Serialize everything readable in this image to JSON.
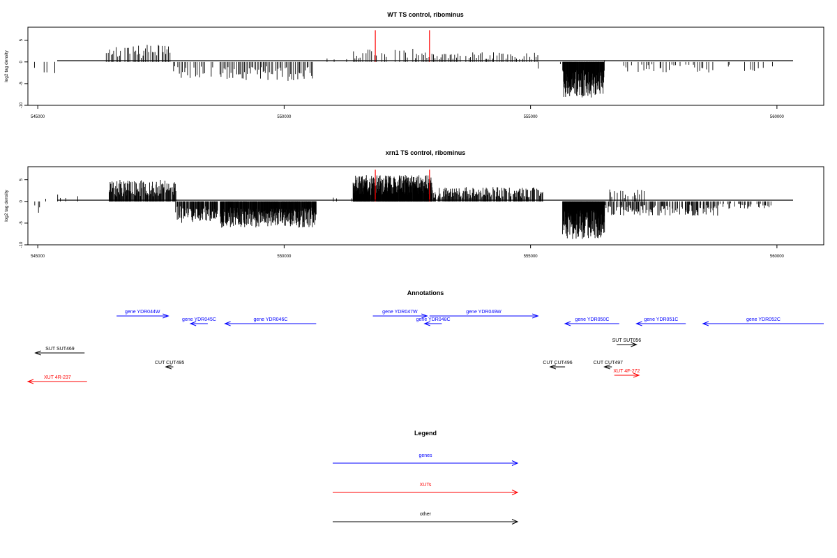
{
  "chart_data": [
    {
      "type": "bar",
      "title": "WT TS control, ribominus",
      "xlabel": "",
      "ylabel": "log2 tag density",
      "xlim": [
        544800,
        560950
      ],
      "ylim": [
        -10,
        8
      ],
      "xticks": [
        545000,
        550000,
        555000,
        560000
      ],
      "yticks": [
        -10,
        -5,
        0,
        5
      ],
      "segments": [
        {
          "x0": 544950,
          "x1": 545700,
          "step": 140,
          "amp": 2.8,
          "density": 0.35,
          "sign": -1,
          "seed": 11
        },
        {
          "x0": 546400,
          "x1": 547700,
          "step": 28,
          "amp": 3.6,
          "density": 0.85,
          "sign": 1,
          "seed": 12
        },
        {
          "x0": 547750,
          "x1": 548550,
          "step": 32,
          "amp": 3.4,
          "density": 0.8,
          "sign": -1,
          "seed": 13
        },
        {
          "x0": 548700,
          "x1": 550600,
          "step": 28,
          "amp": 4.0,
          "density": 0.85,
          "sign": -1,
          "seed": 14
        },
        {
          "x0": 550900,
          "x1": 551300,
          "step": 90,
          "amp": 1.0,
          "density": 0.3,
          "sign": 1,
          "seed": 15
        },
        {
          "x0": 551400,
          "x1": 552950,
          "step": 34,
          "amp": 2.8,
          "density": 0.7,
          "sign": 1,
          "seed": 16
        },
        {
          "x0": 553000,
          "x1": 555200,
          "step": 36,
          "amp": 2.0,
          "density": 0.75,
          "sign": 1,
          "seed": 17
        },
        {
          "x0": 555200,
          "x1": 555650,
          "step": 150,
          "amp": 1.5,
          "density": 0.3,
          "sign": -1,
          "seed": 18
        },
        {
          "x0": 555650,
          "x1": 556500,
          "step": 6,
          "amp": 7.5,
          "density": 1.0,
          "sign": -1,
          "seed": 19
        },
        {
          "x0": 556500,
          "x1": 556900,
          "step": 80,
          "amp": 1.2,
          "density": 0.4,
          "sign": 1,
          "seed": 20
        },
        {
          "x0": 556900,
          "x1": 558700,
          "step": 40,
          "amp": 2.2,
          "density": 0.6,
          "sign": -1,
          "seed": 21
        },
        {
          "x0": 559000,
          "x1": 559900,
          "step": 45,
          "amp": 2.2,
          "density": 0.55,
          "sign": -1,
          "seed": 22
        }
      ],
      "highlights": [
        {
          "x": 551850,
          "y": 7.3,
          "color": "#ff0000"
        },
        {
          "x": 552950,
          "y": 7.3,
          "color": "#ff0000"
        }
      ]
    },
    {
      "type": "bar",
      "title": "xrn1 TS control, ribominus",
      "xlabel": "",
      "ylabel": "log2 tag density",
      "xlim": [
        544800,
        560950
      ],
      "ylim": [
        -10,
        8
      ],
      "xticks": [
        545000,
        550000,
        555000,
        560000
      ],
      "yticks": [
        -10,
        -5,
        0,
        5
      ],
      "segments": [
        {
          "x0": 544950,
          "x1": 545100,
          "step": 30,
          "amp": 2.8,
          "density": 0.8,
          "sign": -1,
          "seed": 31
        },
        {
          "x0": 545150,
          "x1": 545900,
          "step": 60,
          "amp": 1.5,
          "density": 0.5,
          "sign": 1,
          "seed": 32
        },
        {
          "x0": 546450,
          "x1": 547800,
          "step": 10,
          "amp": 4.5,
          "density": 0.9,
          "sign": 1,
          "seed": 33
        },
        {
          "x0": 547800,
          "x1": 548650,
          "step": 10,
          "amp": 4.5,
          "density": 0.9,
          "sign": -1,
          "seed": 34
        },
        {
          "x0": 548700,
          "x1": 550650,
          "step": 6,
          "amp": 5.5,
          "density": 0.95,
          "sign": -1,
          "seed": 35
        },
        {
          "x0": 551000,
          "x1": 551400,
          "step": 60,
          "amp": 1.2,
          "density": 0.4,
          "sign": 1,
          "seed": 36
        },
        {
          "x0": 551400,
          "x1": 553000,
          "step": 5,
          "amp": 5.5,
          "density": 0.95,
          "sign": 1,
          "seed": 37
        },
        {
          "x0": 553000,
          "x1": 555250,
          "step": 12,
          "amp": 3.0,
          "density": 0.85,
          "sign": 1,
          "seed": 38
        },
        {
          "x0": 555650,
          "x1": 556500,
          "step": 5,
          "amp": 8.0,
          "density": 1.0,
          "sign": -1,
          "seed": 39
        },
        {
          "x0": 556500,
          "x1": 558800,
          "step": 14,
          "amp": 3.0,
          "density": 0.8,
          "sign": -1,
          "seed": 40
        },
        {
          "x0": 556600,
          "x1": 557300,
          "step": 25,
          "amp": 2.5,
          "density": 0.6,
          "sign": 1,
          "seed": 41
        },
        {
          "x0": 558800,
          "x1": 559900,
          "step": 20,
          "amp": 1.6,
          "density": 0.6,
          "sign": -1,
          "seed": 42
        }
      ],
      "highlights": [
        {
          "x": 551850,
          "y": 7.3,
          "color": "#ff0000"
        },
        {
          "x": 552950,
          "y": 7.3,
          "color": "#ff0000"
        }
      ]
    }
  ],
  "annotations": {
    "title": "Annotations",
    "items": [
      {
        "label": "gene YDR044W",
        "from": 546600,
        "to": 547650,
        "row": 0,
        "color": "#0000ff"
      },
      {
        "label": "gene YDR045C",
        "from": 548450,
        "to": 548100,
        "row": 1,
        "color": "#0000ff"
      },
      {
        "label": "gene YDR046C",
        "from": 550650,
        "to": 548800,
        "row": 1,
        "color": "#0000ff"
      },
      {
        "label": "gene YDR047W",
        "from": 551800,
        "to": 552900,
        "row": 0,
        "color": "#0000ff"
      },
      {
        "label": "gene YDR048C",
        "from": 553200,
        "to": 552850,
        "row": 1,
        "color": "#0000ff"
      },
      {
        "label": "gene YDR049W",
        "from": 552950,
        "to": 555150,
        "row": 0,
        "color": "#0000ff"
      },
      {
        "label": "gene YDR050C",
        "from": 556800,
        "to": 555700,
        "row": 1,
        "color": "#0000ff"
      },
      {
        "label": "gene YDR051C",
        "from": 558150,
        "to": 557150,
        "row": 1,
        "color": "#0000ff"
      },
      {
        "label": "gene YDR052C",
        "from": 560950,
        "to": 558500,
        "row": 1,
        "color": "#0000ff"
      },
      {
        "label": "SUT SUT469",
        "from": 545950,
        "to": 544950,
        "row": 2,
        "color": "#000000"
      },
      {
        "label": "SUT SUT056",
        "from": 556750,
        "to": 557150,
        "row": 3,
        "color": "#000000"
      },
      {
        "label": "CUT CUT495",
        "from": 547750,
        "to": 547600,
        "row": 4,
        "color": "#000000"
      },
      {
        "label": "CUT CUT496",
        "from": 555700,
        "to": 555400,
        "row": 4,
        "color": "#000000"
      },
      {
        "label": "CUT CUT497",
        "from": 556650,
        "to": 556500,
        "row": 4,
        "color": "#000000"
      },
      {
        "label": "XUT 4F-272",
        "from": 556700,
        "to": 557200,
        "row": 5,
        "color": "#ff0000"
      },
      {
        "label": "XUT 4R-237",
        "from": 546000,
        "to": 544800,
        "row": 6,
        "color": "#ff0000"
      }
    ]
  },
  "legend": {
    "title": "Legend",
    "items": [
      {
        "label": "genes",
        "color": "#0000ff"
      },
      {
        "label": "XUTs",
        "color": "#ff0000"
      },
      {
        "label": "other",
        "color": "#000000"
      }
    ]
  }
}
